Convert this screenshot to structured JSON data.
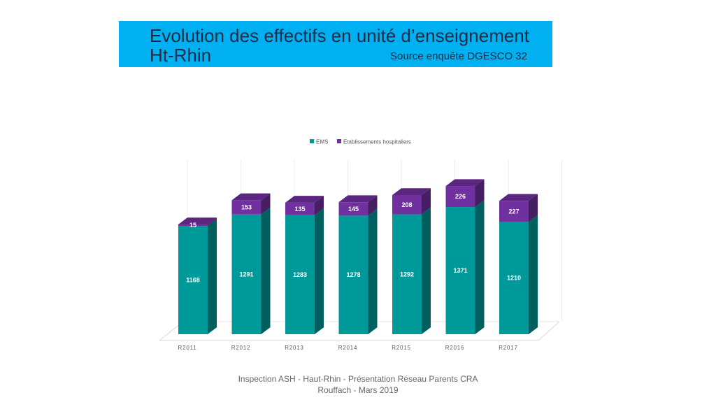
{
  "header": {
    "title_line1": "Evolution des effectifs en unité d’enseignement",
    "title_line2": "Ht-Rhin",
    "source": "Source enquête DGESCO 32"
  },
  "footer": {
    "line1": "Inspection ASH - Haut-Rhin - Présentation Réseau Parents CRA",
    "line2": "Rouffach - Mars 2019"
  },
  "colors": {
    "banner": "#00b0f0",
    "ems": "#009999",
    "hospital": "#7030a0"
  },
  "chart_data": {
    "type": "bar",
    "stacked": true,
    "three_d": true,
    "categories": [
      "R2011",
      "R2012",
      "R2013",
      "R2014",
      "R2015",
      "R2016",
      "R2017"
    ],
    "series": [
      {
        "name": "EMS",
        "values": [
          1168,
          1291,
          1283,
          1278,
          1292,
          1371,
          1210
        ]
      },
      {
        "name": "Etablissements hospitaliers",
        "values": [
          15,
          153,
          135,
          145,
          208,
          226,
          227
        ]
      }
    ],
    "legend": "top",
    "data_labels": true,
    "grid": false
  }
}
